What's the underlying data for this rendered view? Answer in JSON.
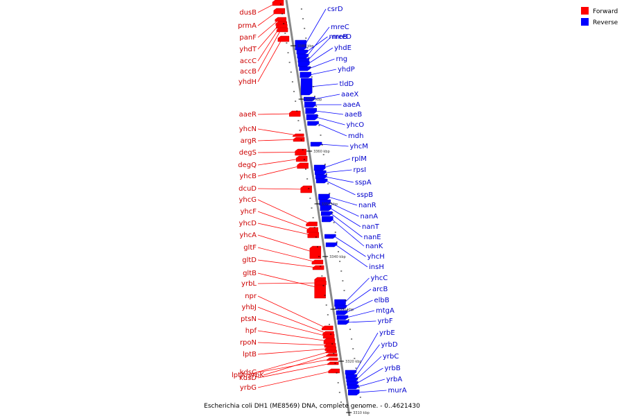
{
  "caption": "Escherichia coli DH1 (ME8569) DNA, complete genome. - 0..4621430",
  "legend": {
    "forward": {
      "label": "Forward",
      "color": "#ff0000"
    },
    "reverse": {
      "label": "Reverse",
      "color": "#0000ff"
    }
  },
  "colors": {
    "forward_label": "#cc0000",
    "reverse_label": "#0000cc",
    "backbone": "#888888"
  },
  "ticks": [
    "3380 kbp",
    "3370 kbp",
    "3360 kbp",
    "3350 kbp",
    "3340 kbp",
    "3330 kbp",
    "3320 kbp",
    "3310 kbp"
  ],
  "forward_genes": [
    "dusB",
    "prmA",
    "panF",
    "yhdT",
    "accC",
    "accB",
    "yhdH",
    "aaeR",
    "yhcN",
    "argR",
    "degS",
    "degQ",
    "yhcB",
    "dcuD",
    "yhcG",
    "yhcF",
    "yhcD",
    "yhcA",
    "gltF",
    "gltD",
    "gltB",
    "yrbL",
    "npr",
    "yhbJ",
    "ptsN",
    "hpf",
    "rpoN",
    "lptB",
    "lptA",
    "yrbK",
    "kdsC",
    "kdsD",
    "yrbG"
  ],
  "reverse_genes": [
    "csrD",
    "mreB",
    "mreC",
    "mreD",
    "yhdE",
    "rng",
    "yhdP",
    "tldD",
    "aaeX",
    "aaeA",
    "aaeB",
    "yhcO",
    "mdh",
    "yhcM",
    "rplM",
    "rpsI",
    "sspA",
    "sspB",
    "nanR",
    "nanA",
    "nanT",
    "nanE",
    "nanK",
    "yhcH",
    "insH",
    "yhcC",
    "arcB",
    "elbB",
    "mtgA",
    "yrbF",
    "yrbE",
    "yrbD",
    "yrbC",
    "yrbB",
    "yrbA",
    "murA"
  ]
}
